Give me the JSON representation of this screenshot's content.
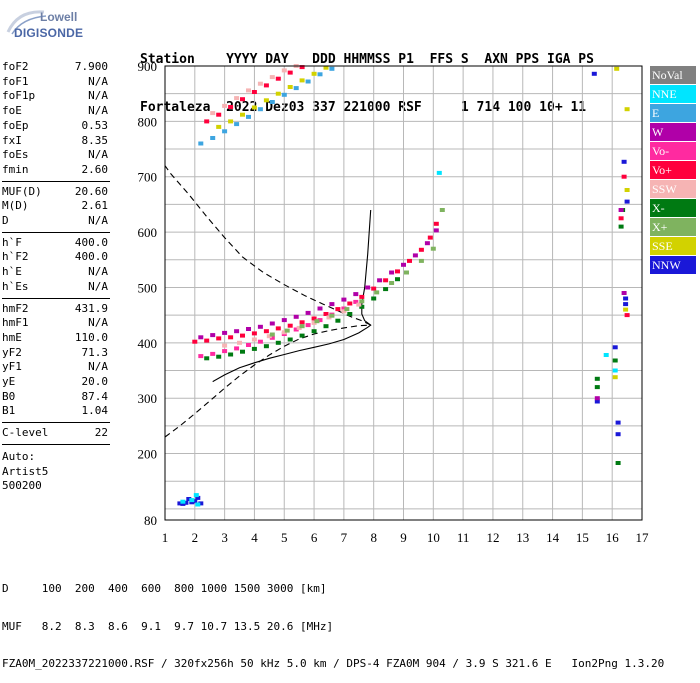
{
  "logo": {
    "line1": "Lowell",
    "line2": "DIGISONDE"
  },
  "header": {
    "labels": "Station    YYYY DAY   DDD HHMMSS P1  FFS S  AXN PPS IGA PS",
    "values": "Fortaleza  2022 Dez03 337 221000 RSF     1 714 100 10+ 11"
  },
  "params": {
    "group1": [
      {
        "label": "foF2",
        "value": "7.900"
      },
      {
        "label": "foF1",
        "value": "N/A"
      },
      {
        "label": "foF1p",
        "value": "N/A"
      },
      {
        "label": "foE",
        "value": "N/A"
      },
      {
        "label": "foEp",
        "value": "0.53"
      },
      {
        "label": "fxI",
        "value": "8.35"
      },
      {
        "label": "foEs",
        "value": "N/A"
      },
      {
        "label": "fmin",
        "value": "2.60"
      }
    ],
    "group2": [
      {
        "label": "MUF(D)",
        "value": "20.60"
      },
      {
        "label": "M(D)",
        "value": "2.61"
      },
      {
        "label": "D",
        "value": "N/A"
      }
    ],
    "group3": [
      {
        "label": "h`F",
        "value": "400.0"
      },
      {
        "label": "h`F2",
        "value": "400.0"
      },
      {
        "label": "h`E",
        "value": "N/A"
      },
      {
        "label": "h`Es",
        "value": "N/A"
      }
    ],
    "group4": [
      {
        "label": "hmF2",
        "value": "431.9"
      },
      {
        "label": "hmF1",
        "value": "N/A"
      },
      {
        "label": "hmE",
        "value": "110.0"
      },
      {
        "label": "yF2",
        "value": "71.3"
      },
      {
        "label": "yF1",
        "value": "N/A"
      },
      {
        "label": "yE",
        "value": "20.0"
      },
      {
        "label": "B0",
        "value": "87.4"
      },
      {
        "label": "B1",
        "value": "1.04"
      }
    ],
    "group5": [
      {
        "label": "C-level",
        "value": "22"
      }
    ],
    "auto": [
      "Auto:",
      "Artist5",
      "500200"
    ]
  },
  "legend": [
    {
      "label": "NoVal",
      "color": "#808080"
    },
    {
      "label": "NNE",
      "color": "#00e5ff"
    },
    {
      "label": "E",
      "color": "#3da5e0"
    },
    {
      "label": "W",
      "color": "#b000a8"
    },
    {
      "label": "Vo-",
      "color": "#ff2aa0"
    },
    {
      "label": "Vo+",
      "color": "#ff003c"
    },
    {
      "label": "SSW",
      "color": "#f6b4b4"
    },
    {
      "label": "X-",
      "color": "#007a12"
    },
    {
      "label": "X+",
      "color": "#7fb35f"
    },
    {
      "label": "SSE",
      "color": "#d2d200"
    },
    {
      "label": "NNW",
      "color": "#1a18d8"
    }
  ],
  "footer": {
    "line1": "D     100  200  400  600  800 1000 1500 3000 [km]",
    "line2": "MUF   8.2  8.3  8.6  9.1  9.7 10.7 13.5 20.6 [MHz]",
    "line3": "FZA0M_2022337221000.RSF / 320fx256h 50 kHz 5.0 km / DPS-4 FZA0M 904 / 3.9 S 321.6 E   Ion2Png 1.3.20"
  },
  "chart_data": {
    "type": "scatter",
    "title": "",
    "xlabel": "",
    "ylabel": "",
    "xlim": [
      1,
      17
    ],
    "ylim": [
      80,
      900
    ],
    "xticks": [
      1,
      2,
      3,
      4,
      5,
      6,
      7,
      8,
      9,
      10,
      11,
      12,
      13,
      14,
      15,
      16,
      17
    ],
    "yticks": [
      80,
      200,
      300,
      400,
      500,
      600,
      700,
      800,
      900
    ],
    "grid": true,
    "series": [
      {
        "name": "Vo+",
        "points": [
          [
            2.0,
            402
          ],
          [
            2.4,
            404
          ],
          [
            2.8,
            408
          ],
          [
            3.2,
            410
          ],
          [
            3.6,
            413
          ],
          [
            4.0,
            417
          ],
          [
            4.4,
            421
          ],
          [
            4.8,
            426
          ],
          [
            5.2,
            431
          ],
          [
            5.6,
            437
          ],
          [
            6.0,
            444
          ],
          [
            6.4,
            452
          ],
          [
            6.8,
            461
          ],
          [
            7.2,
            471
          ],
          [
            7.6,
            483
          ],
          [
            8.0,
            498
          ],
          [
            8.4,
            513
          ],
          [
            8.8,
            529
          ],
          [
            9.2,
            548
          ],
          [
            9.6,
            568
          ],
          [
            9.9,
            590
          ],
          [
            10.1,
            615
          ]
        ]
      },
      {
        "name": "W",
        "points": [
          [
            2.2,
            410
          ],
          [
            2.6,
            414
          ],
          [
            3.0,
            418
          ],
          [
            3.4,
            421
          ],
          [
            3.8,
            425
          ],
          [
            4.2,
            429
          ],
          [
            4.6,
            435
          ],
          [
            5.0,
            441
          ],
          [
            5.4,
            447
          ],
          [
            5.8,
            454
          ],
          [
            6.2,
            462
          ],
          [
            6.6,
            470
          ],
          [
            7.0,
            478
          ],
          [
            7.4,
            488
          ],
          [
            7.8,
            500
          ],
          [
            8.2,
            513
          ],
          [
            8.6,
            527
          ],
          [
            9.0,
            541
          ],
          [
            9.4,
            558
          ],
          [
            9.8,
            580
          ],
          [
            10.1,
            603
          ]
        ]
      },
      {
        "name": "X-",
        "points": [
          [
            2.4,
            372
          ],
          [
            2.8,
            375
          ],
          [
            3.2,
            379
          ],
          [
            3.6,
            384
          ],
          [
            4.0,
            389
          ],
          [
            4.4,
            394
          ],
          [
            4.8,
            400
          ],
          [
            5.2,
            406
          ],
          [
            5.6,
            413
          ],
          [
            6.0,
            421
          ],
          [
            6.4,
            430
          ],
          [
            6.8,
            440
          ],
          [
            7.2,
            452
          ],
          [
            7.6,
            465
          ],
          [
            8.0,
            480
          ],
          [
            8.4,
            497
          ],
          [
            8.8,
            515
          ]
        ]
      },
      {
        "name": "Vo-",
        "points": [
          [
            2.2,
            376
          ],
          [
            2.6,
            380
          ],
          [
            3.0,
            385
          ],
          [
            3.4,
            390
          ],
          [
            3.8,
            396
          ],
          [
            4.2,
            402
          ],
          [
            4.6,
            409
          ],
          [
            5.0,
            416
          ],
          [
            5.4,
            424
          ],
          [
            5.8,
            432
          ],
          [
            6.2,
            441
          ],
          [
            6.6,
            451
          ],
          [
            7.0,
            462
          ],
          [
            7.4,
            474
          ]
        ]
      },
      {
        "name": "SSW",
        "points": [
          [
            3.0,
            395
          ],
          [
            3.5,
            400
          ],
          [
            4.0,
            406
          ],
          [
            4.5,
            412
          ],
          [
            5.0,
            419
          ],
          [
            5.5,
            427
          ],
          [
            6.0,
            436
          ],
          [
            6.5,
            446
          ],
          [
            7.0,
            457
          ],
          [
            7.5,
            469
          ]
        ]
      },
      {
        "name": "X+",
        "points": [
          [
            4.6,
            415
          ],
          [
            5.1,
            422
          ],
          [
            5.6,
            430
          ],
          [
            6.1,
            439
          ],
          [
            6.6,
            449
          ],
          [
            7.1,
            461
          ],
          [
            7.6,
            475
          ],
          [
            8.1,
            491
          ],
          [
            8.6,
            508
          ],
          [
            9.1,
            527
          ],
          [
            9.6,
            548
          ],
          [
            10.0,
            570
          ],
          [
            10.3,
            640
          ]
        ]
      },
      {
        "name": "E",
        "points": [
          [
            2.2,
            760
          ],
          [
            2.6,
            770
          ],
          [
            3.0,
            782
          ],
          [
            3.4,
            795
          ],
          [
            3.8,
            808
          ],
          [
            4.2,
            822
          ],
          [
            4.6,
            835
          ],
          [
            5.0,
            848
          ],
          [
            5.4,
            860
          ],
          [
            5.8,
            872
          ],
          [
            6.2,
            885
          ],
          [
            6.6,
            895
          ]
        ]
      },
      {
        "name": "Vo+",
        "points": [
          [
            2.4,
            800
          ],
          [
            2.8,
            812
          ],
          [
            3.2,
            826
          ],
          [
            3.6,
            840
          ],
          [
            4.0,
            853
          ],
          [
            4.4,
            865
          ],
          [
            4.8,
            877
          ],
          [
            5.2,
            888
          ],
          [
            5.6,
            898
          ]
        ]
      },
      {
        "name": "SSW",
        "points": [
          [
            2.6,
            815
          ],
          [
            3.0,
            828
          ],
          [
            3.4,
            842
          ],
          [
            3.8,
            856
          ],
          [
            4.2,
            868
          ],
          [
            4.6,
            880
          ],
          [
            5.0,
            892
          ],
          [
            5.4,
            900
          ]
        ]
      },
      {
        "name": "SSE",
        "points": [
          [
            2.8,
            790
          ],
          [
            3.2,
            800
          ],
          [
            3.6,
            812
          ],
          [
            4.0,
            825
          ],
          [
            4.4,
            838
          ],
          [
            4.8,
            850
          ],
          [
            5.2,
            862
          ],
          [
            5.6,
            874
          ],
          [
            6.0,
            886
          ],
          [
            6.4,
            897
          ]
        ]
      },
      {
        "name": "NNW",
        "points": [
          [
            1.5,
            110
          ],
          [
            1.7,
            111
          ],
          [
            1.9,
            112
          ],
          [
            2.0,
            114
          ],
          [
            1.8,
            118
          ],
          [
            2.1,
            120
          ],
          [
            1.6,
            109
          ],
          [
            2.2,
            110
          ]
        ]
      },
      {
        "name": "NNE",
        "points": [
          [
            1.6,
            113
          ],
          [
            1.9,
            116
          ],
          [
            2.05,
            125
          ],
          [
            2.1,
            108
          ],
          [
            10.2,
            707
          ],
          [
            15.8,
            378
          ],
          [
            16.1,
            350
          ]
        ]
      },
      {
        "name": "X-",
        "points": [
          [
            15.5,
            335
          ],
          [
            15.5,
            320
          ],
          [
            16.1,
            368
          ],
          [
            16.2,
            183
          ],
          [
            16.3,
            610
          ],
          [
            16.35,
            640
          ]
        ]
      },
      {
        "name": "NNW",
        "points": [
          [
            15.5,
            294
          ],
          [
            16.1,
            392
          ],
          [
            16.2,
            235
          ],
          [
            16.2,
            256
          ],
          [
            16.4,
            727
          ],
          [
            16.45,
            480
          ],
          [
            16.45,
            470
          ],
          [
            16.5,
            655
          ],
          [
            15.4,
            886
          ]
        ]
      },
      {
        "name": "SSE",
        "points": [
          [
            16.1,
            338
          ],
          [
            16.45,
            460
          ],
          [
            16.5,
            822
          ],
          [
            16.5,
            676
          ],
          [
            16.15,
            895
          ]
        ]
      },
      {
        "name": "Vo+",
        "points": [
          [
            16.4,
            700
          ],
          [
            16.5,
            450
          ],
          [
            16.3,
            625
          ]
        ]
      },
      {
        "name": "W",
        "points": [
          [
            16.3,
            640
          ],
          [
            16.4,
            490
          ],
          [
            15.5,
            300
          ]
        ]
      }
    ],
    "lines": [
      {
        "name": "profile",
        "style": "solid",
        "points": [
          [
            2.6,
            330
          ],
          [
            3.0,
            342
          ],
          [
            3.5,
            355
          ],
          [
            4.0,
            364
          ],
          [
            4.5,
            372
          ],
          [
            5.0,
            379
          ],
          [
            5.5,
            386
          ],
          [
            6.0,
            392
          ],
          [
            6.5,
            398
          ],
          [
            7.0,
            406
          ],
          [
            7.5,
            418
          ],
          [
            7.8,
            428
          ],
          [
            7.9,
            432
          ],
          [
            7.7,
            440
          ],
          [
            7.6,
            452
          ],
          [
            7.6,
            470
          ],
          [
            7.7,
            500
          ],
          [
            7.8,
            560
          ],
          [
            7.9,
            640
          ]
        ]
      },
      {
        "name": "extrapolated",
        "style": "dashed",
        "points": [
          [
            1.0,
            230
          ],
          [
            1.5,
            250
          ],
          [
            2.0,
            272
          ],
          [
            2.5,
            295
          ],
          [
            3.0,
            318
          ],
          [
            3.5,
            340
          ],
          [
            4.0,
            360
          ],
          [
            4.5,
            378
          ],
          [
            5.0,
            394
          ],
          [
            5.5,
            407
          ],
          [
            6.0,
            416
          ],
          [
            6.5,
            422
          ],
          [
            7.0,
            427
          ],
          [
            7.5,
            431
          ],
          [
            7.9,
            432
          ],
          [
            7.6,
            440
          ],
          [
            7.2,
            448
          ],
          [
            6.8,
            458
          ],
          [
            6.3,
            470
          ],
          [
            5.7,
            485
          ],
          [
            5.0,
            505
          ],
          [
            4.3,
            527
          ],
          [
            3.6,
            555
          ],
          [
            3.0,
            590
          ],
          [
            2.4,
            628
          ],
          [
            1.8,
            668
          ],
          [
            1.2,
            705
          ],
          [
            1.0,
            720
          ]
        ]
      }
    ]
  }
}
